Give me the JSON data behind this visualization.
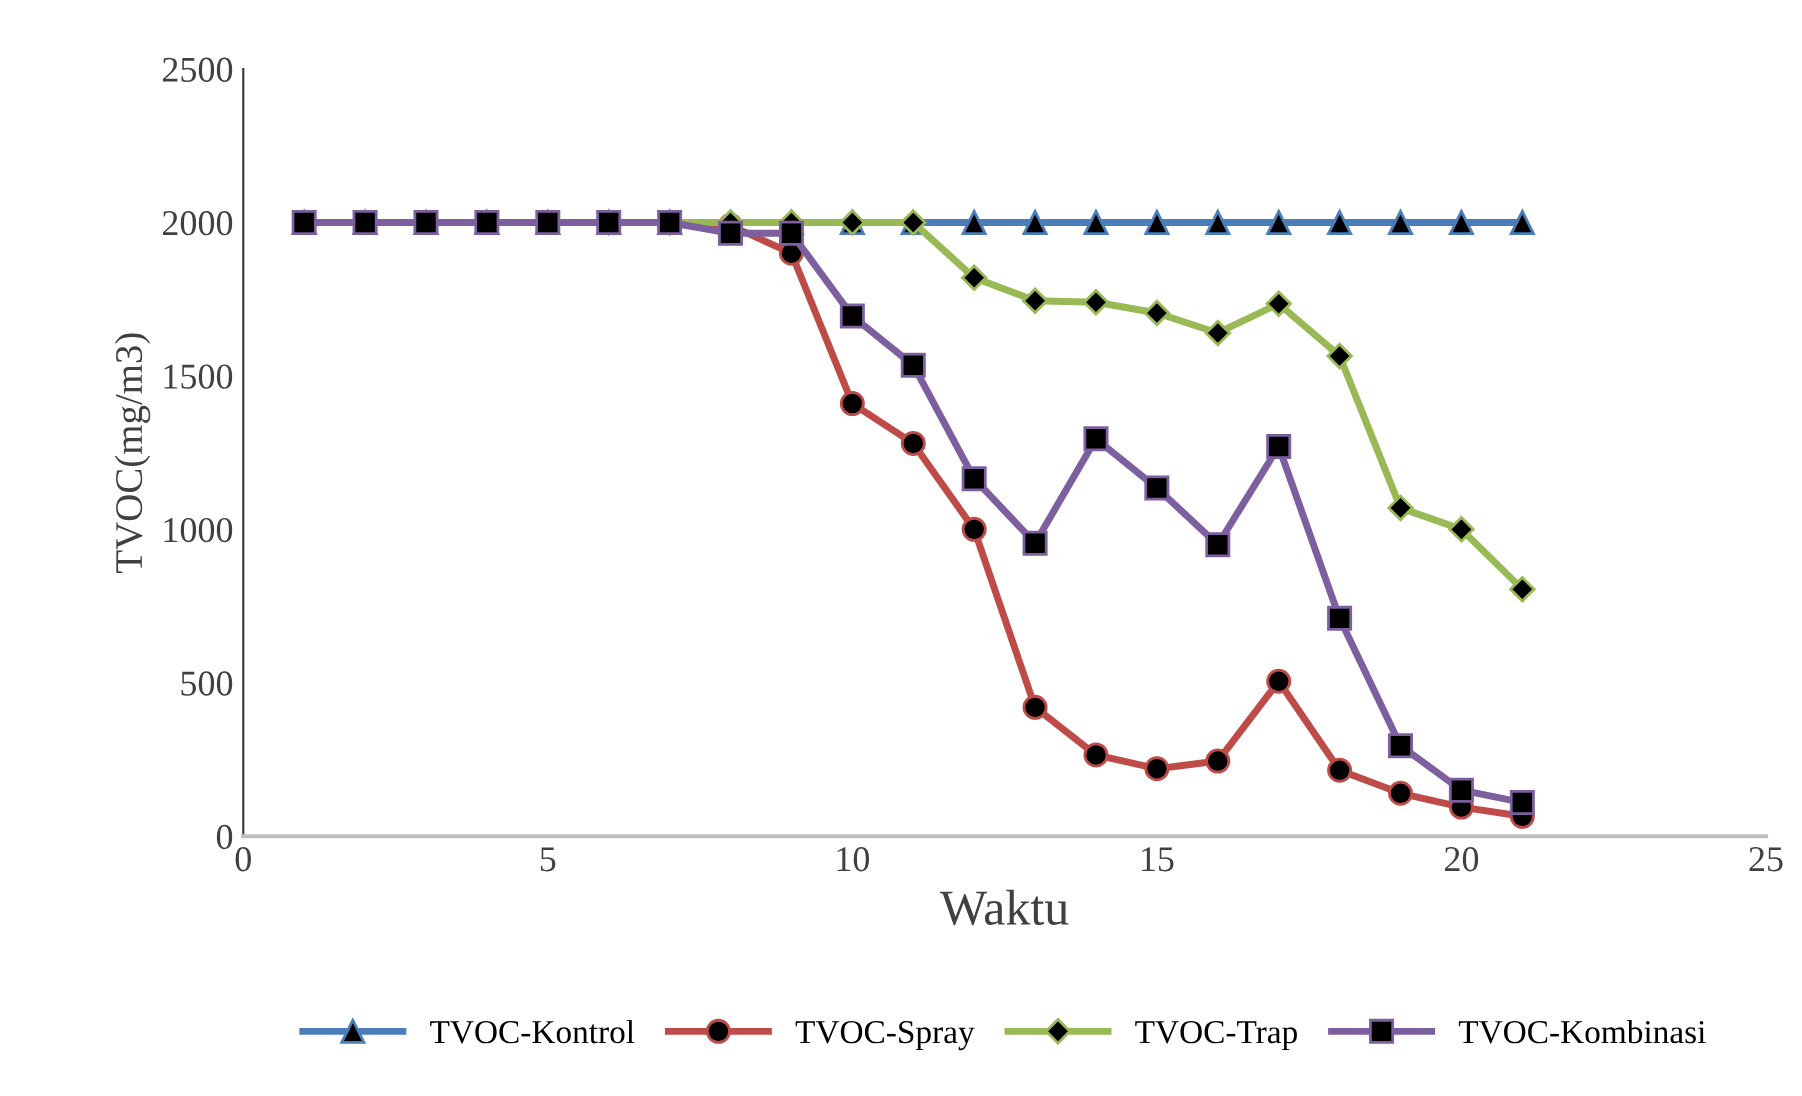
{
  "chart_data": {
    "type": "line",
    "xlabel": "Waktu",
    "ylabel": "TVOC(mg/m3)",
    "x": [
      1,
      2,
      3,
      4,
      5,
      6,
      7,
      8,
      9,
      10,
      11,
      12,
      13,
      14,
      15,
      16,
      17,
      18,
      19,
      20,
      21
    ],
    "xlim": [
      0,
      25
    ],
    "xticks": [
      0,
      5,
      10,
      15,
      20,
      25
    ],
    "ylim": [
      0,
      2500
    ],
    "yticks": [
      0,
      500,
      1000,
      1500,
      2000,
      2500
    ],
    "grid": false,
    "legend": "bottom",
    "series": [
      {
        "name": "TVOC-Kontrol",
        "color": "#4a7ebb",
        "marker": "triangle",
        "values": [
          2000,
          2000,
          2000,
          2000,
          2000,
          2000,
          2000,
          2000,
          2000,
          2000,
          2000,
          2000,
          2000,
          2000,
          2000,
          2000,
          2000,
          2000,
          2000,
          2000,
          2000
        ]
      },
      {
        "name": "TVOC-Spray",
        "color": "#be4b48",
        "marker": "circle",
        "values": [
          null,
          null,
          null,
          null,
          null,
          null,
          2000,
          1990,
          1900,
          1410,
          1280,
          1000,
          420,
          265,
          220,
          245,
          505,
          215,
          140,
          95,
          65
        ]
      },
      {
        "name": "TVOC-Trap",
        "color": "#98b954",
        "marker": "diamond",
        "values": [
          null,
          null,
          null,
          null,
          null,
          2000,
          2000,
          2000,
          2000,
          2000,
          2000,
          1820,
          1745,
          1740,
          1705,
          1640,
          1735,
          1565,
          1070,
          1000,
          805
        ]
      },
      {
        "name": "TVOC-Kombinasi",
        "color": "#7d5fa0",
        "marker": "square",
        "values": [
          2000,
          2000,
          2000,
          2000,
          2000,
          2000,
          2000,
          1965,
          1965,
          1695,
          1535,
          1165,
          955,
          1295,
          1135,
          950,
          1270,
          710,
          295,
          150,
          110
        ]
      }
    ]
  }
}
